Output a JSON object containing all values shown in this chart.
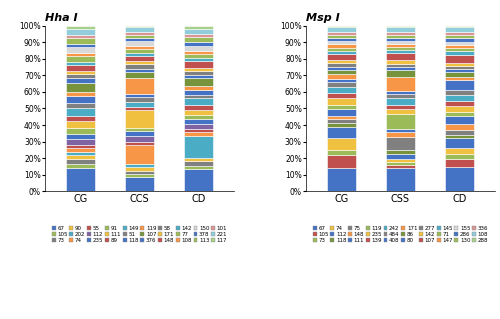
{
  "hha_title": "Hha I",
  "msp_title": "Msp I",
  "hha_categories": [
    "CG",
    "CCS",
    "CD"
  ],
  "msp_categories": [
    "CG",
    "CSS",
    "CD"
  ],
  "hha_legend_labels": [
    "67",
    "105",
    "73",
    "90",
    "202",
    "74",
    "55",
    "112",
    "235",
    "91",
    "111",
    "89",
    "149",
    "51",
    "118",
    "119",
    "107",
    "376",
    "58",
    "171",
    "148",
    "142",
    "77",
    "108",
    "150",
    "378",
    "113",
    "101",
    "221",
    "117"
  ],
  "msp_legend_labels": [
    "67",
    "105",
    "73",
    "74",
    "112",
    "118",
    "75",
    "148",
    "111",
    "119",
    "235",
    "139",
    "242",
    "484",
    "408",
    "171",
    "86",
    "80",
    "277",
    "142",
    "107",
    "145",
    "71",
    "147",
    "155",
    "286",
    "130",
    "336",
    "108",
    "288"
  ],
  "hha_colors": [
    "#4F81BD",
    "#C0504D",
    "#9BBB59",
    "#808080",
    "#F0C040",
    "#4BACC6",
    "#F79646",
    "#8064A2",
    "#4F81BD",
    "#9BBB59",
    "#F0C040",
    "#C0504D",
    "#4BACC6",
    "#808080",
    "#4F81BD",
    "#F79646",
    "#77933C",
    "#4F81BD",
    "#808080",
    "#F0C040",
    "#C0504D",
    "#4BACC6",
    "#9BBB59",
    "#F79646",
    "#D9D9D9",
    "#4F81BD",
    "#9BBB59",
    "#D99694",
    "#92CDDC",
    "#A8D08D"
  ],
  "msp_colors": [
    "#4F81BD",
    "#C0504D",
    "#9BBB59",
    "#F0C040",
    "#4BACC6",
    "#77933C",
    "#808080",
    "#F79646",
    "#4F81BD",
    "#9BBB59",
    "#F0C040",
    "#C0504D",
    "#4BACC6",
    "#808080",
    "#4F81BD",
    "#F79646",
    "#77933C",
    "#4F81BD",
    "#808080",
    "#F0C040",
    "#C0504D",
    "#4BACC6",
    "#9BBB59",
    "#F79646",
    "#D9D9D9",
    "#4F81BD",
    "#9BBB59",
    "#D99694",
    "#92CDDC",
    "#A8D08D"
  ],
  "hha_pct": {
    "CG": [
      13,
      2,
      3,
      2,
      2,
      2,
      2,
      3,
      3,
      3,
      4,
      3,
      4,
      3,
      4,
      2,
      5,
      3,
      2,
      2,
      3,
      2,
      3,
      2,
      3,
      2,
      3,
      2,
      3,
      2
    ],
    "CCS": [
      9,
      2,
      2,
      2,
      2,
      12,
      2,
      4,
      3,
      2,
      11,
      2,
      3,
      3,
      2,
      10,
      4,
      2,
      3,
      2,
      3,
      2,
      2,
      2,
      3,
      2,
      2,
      2,
      3,
      1
    ],
    "CD": [
      13,
      2,
      3,
      2,
      13,
      2,
      2,
      3,
      3,
      2,
      3,
      3,
      4,
      2,
      3,
      2,
      5,
      2,
      2,
      2,
      4,
      2,
      2,
      2,
      3,
      2,
      3,
      2,
      3,
      2
    ]
  },
  "msp_pct": {
    "CG": [
      15,
      8,
      3,
      8,
      7,
      2,
      3,
      2,
      4,
      3,
      4,
      3,
      4,
      3,
      2,
      3,
      3,
      2,
      2,
      2,
      4,
      2,
      2,
      2,
      2,
      2,
      2,
      2,
      3,
      1
    ],
    "CSS": [
      15,
      2,
      2,
      2,
      3,
      3,
      8,
      3,
      2,
      10,
      3,
      3,
      4,
      3,
      2,
      9,
      4,
      2,
      2,
      3,
      4,
      2,
      2,
      2,
      2,
      2,
      2,
      2,
      3,
      1
    ],
    "CD": [
      15,
      5,
      3,
      4,
      6,
      2,
      3,
      4,
      5,
      2,
      4,
      3,
      4,
      3,
      6,
      2,
      3,
      2,
      2,
      2,
      5,
      2,
      2,
      2,
      2,
      2,
      2,
      2,
      3,
      1
    ]
  }
}
